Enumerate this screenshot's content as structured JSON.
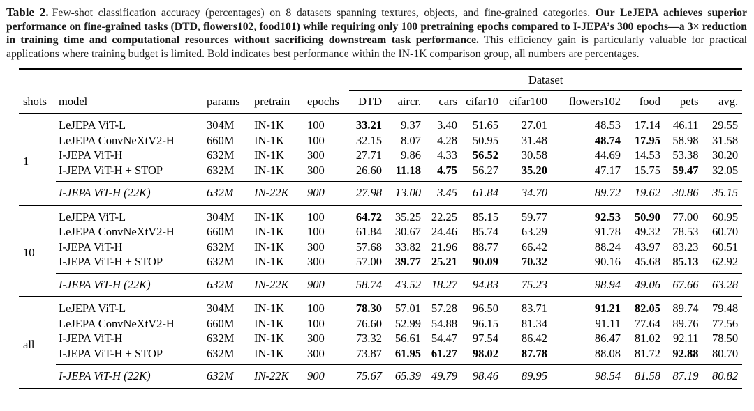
{
  "caption": {
    "label": "Table 2.",
    "intro": "Few-shot classification accuracy (percentages) on 8 datasets spanning textures, objects, and fine-grained categories. ",
    "highlight": "Our LeJEPA achieves superior performance on fine-grained tasks (DTD, flowers102, food101) while requiring only 100 pretraining epochs compared to I-JEPA’s 300 epochs—a 3× reduction in training time and computational resources without sacrificing downstream task performance.",
    "outro": " This efficiency gain is particularly valuable for practical applications where training budget is limited. Bold indicates best performance within the IN-1K comparison group, all numbers are percentages."
  },
  "table": {
    "spanner": "Dataset",
    "columns": [
      "shots",
      "model",
      "params",
      "pretrain",
      "epochs",
      "DTD",
      "aircr.",
      "cars",
      "cifar10",
      "cifar100",
      "flowers102",
      "food",
      "pets",
      "avg."
    ],
    "groups": [
      {
        "shots": "1",
        "rows": [
          {
            "model": "LeJEPA ViT-L",
            "params": "304M",
            "pretrain": "IN-1K",
            "epochs": "100",
            "values": [
              "33.21",
              "9.37",
              "3.40",
              "51.65",
              "27.01",
              "48.53",
              "17.14",
              "46.11"
            ],
            "bold_mask": [
              1,
              0,
              0,
              0,
              0,
              0,
              0,
              0
            ],
            "avg": "29.55"
          },
          {
            "model": "LeJEPA ConvNeXtV2-H",
            "params": "660M",
            "pretrain": "IN-1K",
            "epochs": "100",
            "values": [
              "32.15",
              "8.07",
              "4.28",
              "50.95",
              "31.48",
              "48.74",
              "17.95",
              "58.98"
            ],
            "bold_mask": [
              0,
              0,
              0,
              0,
              0,
              1,
              1,
              0
            ],
            "avg": "31.58"
          },
          {
            "model": "I-JEPA ViT-H",
            "params": "632M",
            "pretrain": "IN-1K",
            "epochs": "300",
            "values": [
              "27.71",
              "9.86",
              "4.33",
              "56.52",
              "30.58",
              "44.69",
              "14.53",
              "53.38"
            ],
            "bold_mask": [
              0,
              0,
              0,
              1,
              0,
              0,
              0,
              0
            ],
            "avg": "30.20"
          },
          {
            "model": "I-JEPA ViT-H + STOP",
            "params": "632M",
            "pretrain": "IN-1K",
            "epochs": "300",
            "values": [
              "26.60",
              "11.18",
              "4.75",
              "56.27",
              "35.20",
              "47.17",
              "15.75",
              "59.47"
            ],
            "bold_mask": [
              0,
              1,
              1,
              0,
              1,
              0,
              0,
              1
            ],
            "avg": "32.05"
          }
        ],
        "ref_row": {
          "model": "I-JEPA ViT-H (22K)",
          "params": "632M",
          "pretrain": "IN-22K",
          "epochs": "900",
          "values": [
            "27.98",
            "13.00",
            "3.45",
            "61.84",
            "34.70",
            "89.72",
            "19.62",
            "30.86"
          ],
          "bold_mask": [
            0,
            0,
            0,
            0,
            0,
            0,
            0,
            0
          ],
          "avg": "35.15"
        }
      },
      {
        "shots": "10",
        "rows": [
          {
            "model": "LeJEPA ViT-L",
            "params": "304M",
            "pretrain": "IN-1K",
            "epochs": "100",
            "values": [
              "64.72",
              "35.25",
              "22.25",
              "85.15",
              "59.77",
              "92.53",
              "50.90",
              "77.00"
            ],
            "bold_mask": [
              1,
              0,
              0,
              0,
              0,
              1,
              1,
              0
            ],
            "avg": "60.95"
          },
          {
            "model": "LeJEPA ConvNeXtV2-H",
            "params": "660M",
            "pretrain": "IN-1K",
            "epochs": "100",
            "values": [
              "61.84",
              "30.67",
              "24.46",
              "85.74",
              "63.29",
              "91.78",
              "49.32",
              "78.53"
            ],
            "bold_mask": [
              0,
              0,
              0,
              0,
              0,
              0,
              0,
              0
            ],
            "avg": "60.70"
          },
          {
            "model": "I-JEPA ViT-H",
            "params": "632M",
            "pretrain": "IN-1K",
            "epochs": "300",
            "values": [
              "57.68",
              "33.82",
              "21.96",
              "88.77",
              "66.42",
              "88.24",
              "43.97",
              "83.23"
            ],
            "bold_mask": [
              0,
              0,
              0,
              0,
              0,
              0,
              0,
              0
            ],
            "avg": "60.51"
          },
          {
            "model": "I-JEPA ViT-H + STOP",
            "params": "632M",
            "pretrain": "IN-1K",
            "epochs": "300",
            "values": [
              "57.00",
              "39.77",
              "25.21",
              "90.09",
              "70.32",
              "90.16",
              "45.68",
              "85.13"
            ],
            "bold_mask": [
              0,
              1,
              1,
              1,
              1,
              0,
              0,
              1
            ],
            "avg": "62.92"
          }
        ],
        "ref_row": {
          "model": "I-JEPA ViT-H (22K)",
          "params": "632M",
          "pretrain": "IN-22K",
          "epochs": "900",
          "values": [
            "58.74",
            "43.52",
            "18.27",
            "94.83",
            "75.23",
            "98.94",
            "49.06",
            "67.66"
          ],
          "bold_mask": [
            0,
            0,
            0,
            0,
            0,
            0,
            0,
            0
          ],
          "avg": "63.28"
        }
      },
      {
        "shots": "all",
        "rows": [
          {
            "model": "LeJEPA ViT-L",
            "params": "304M",
            "pretrain": "IN-1K",
            "epochs": "100",
            "values": [
              "78.30",
              "57.01",
              "57.28",
              "96.50",
              "83.71",
              "91.21",
              "82.05",
              "89.74"
            ],
            "bold_mask": [
              1,
              0,
              0,
              0,
              0,
              1,
              1,
              0
            ],
            "avg": "79.48"
          },
          {
            "model": "LeJEPA ConvNeXtV2-H",
            "params": "660M",
            "pretrain": "IN-1K",
            "epochs": "100",
            "values": [
              "76.60",
              "52.99",
              "54.88",
              "96.15",
              "81.34",
              "91.11",
              "77.64",
              "89.76"
            ],
            "bold_mask": [
              0,
              0,
              0,
              0,
              0,
              0,
              0,
              0
            ],
            "avg": "77.56"
          },
          {
            "model": "I-JEPA ViT-H",
            "params": "632M",
            "pretrain": "IN-1K",
            "epochs": "300",
            "values": [
              "73.32",
              "56.61",
              "54.47",
              "97.54",
              "86.42",
              "86.47",
              "81.02",
              "92.11"
            ],
            "bold_mask": [
              0,
              0,
              0,
              0,
              0,
              0,
              0,
              0
            ],
            "avg": "78.50"
          },
          {
            "model": "I-JEPA ViT-H + STOP",
            "params": "632M",
            "pretrain": "IN-1K",
            "epochs": "300",
            "values": [
              "73.87",
              "61.95",
              "61.27",
              "98.02",
              "87.78",
              "88.08",
              "81.72",
              "92.88"
            ],
            "bold_mask": [
              0,
              1,
              1,
              1,
              1,
              0,
              0,
              1
            ],
            "avg": "80.70"
          }
        ],
        "ref_row": {
          "model": "I-JEPA ViT-H (22K)",
          "params": "632M",
          "pretrain": "IN-22K",
          "epochs": "900",
          "values": [
            "75.67",
            "65.39",
            "49.79",
            "98.46",
            "89.95",
            "98.54",
            "81.58",
            "87.19"
          ],
          "bold_mask": [
            0,
            0,
            0,
            0,
            0,
            0,
            0,
            0
          ],
          "avg": "80.82"
        }
      }
    ]
  }
}
